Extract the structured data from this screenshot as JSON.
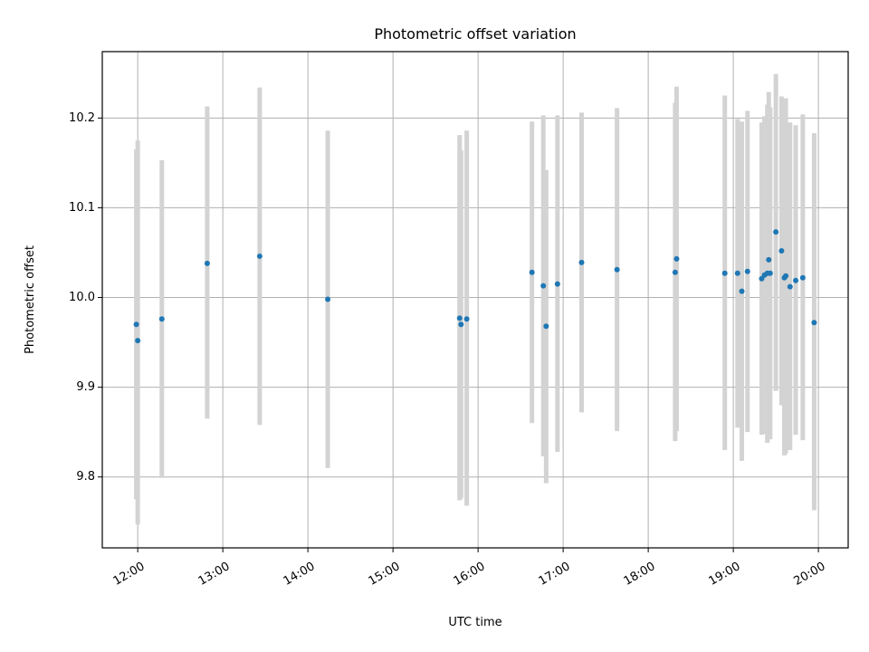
{
  "chart_data": {
    "type": "scatter",
    "title": "Photometric offset variation",
    "xlabel": "UTC time",
    "ylabel": "Photometric offset",
    "xlim": [
      "11:35",
      "20:21"
    ],
    "ylim": [
      9.721,
      10.274
    ],
    "x_ticks": [
      "12:00",
      "13:00",
      "14:00",
      "15:00",
      "16:00",
      "17:00",
      "18:00",
      "19:00",
      "20:00"
    ],
    "y_ticks": [
      "9.8",
      "9.9",
      "10.0",
      "10.1",
      "10.2"
    ],
    "grid": true,
    "marker_color": "#1f77b4",
    "errorbar_color": "#d3d3d3",
    "points": [
      {
        "x": "11:59",
        "y": 9.97,
        "ylow": 9.775,
        "yhigh": 10.165
      },
      {
        "x": "12:00",
        "y": 9.952,
        "ylow": 9.747,
        "yhigh": 10.175
      },
      {
        "x": "12:17",
        "y": 9.976,
        "ylow": 9.799,
        "yhigh": 10.153
      },
      {
        "x": "12:49",
        "y": 10.038,
        "ylow": 9.865,
        "yhigh": 10.213
      },
      {
        "x": "13:26",
        "y": 10.046,
        "ylow": 9.858,
        "yhigh": 10.234
      },
      {
        "x": "14:14",
        "y": 9.998,
        "ylow": 9.81,
        "yhigh": 10.186
      },
      {
        "x": "15:47",
        "y": 9.977,
        "ylow": 9.774,
        "yhigh": 10.181
      },
      {
        "x": "15:48",
        "y": 9.97,
        "ylow": 9.776,
        "yhigh": 10.164
      },
      {
        "x": "15:52",
        "y": 9.976,
        "ylow": 9.768,
        "yhigh": 10.186
      },
      {
        "x": "16:38",
        "y": 10.028,
        "ylow": 9.86,
        "yhigh": 10.196
      },
      {
        "x": "16:46",
        "y": 10.013,
        "ylow": 9.823,
        "yhigh": 10.203
      },
      {
        "x": "16:48",
        "y": 9.968,
        "ylow": 9.793,
        "yhigh": 10.142
      },
      {
        "x": "16:56",
        "y": 10.015,
        "ylow": 9.828,
        "yhigh": 10.203
      },
      {
        "x": "17:13",
        "y": 10.039,
        "ylow": 9.872,
        "yhigh": 10.206
      },
      {
        "x": "17:38",
        "y": 10.031,
        "ylow": 9.851,
        "yhigh": 10.211
      },
      {
        "x": "18:19",
        "y": 10.028,
        "ylow": 9.84,
        "yhigh": 10.217
      },
      {
        "x": "18:20",
        "y": 10.043,
        "ylow": 9.851,
        "yhigh": 10.235
      },
      {
        "x": "18:54",
        "y": 10.027,
        "ylow": 9.83,
        "yhigh": 10.225
      },
      {
        "x": "19:03",
        "y": 10.027,
        "ylow": 9.855,
        "yhigh": 10.199
      },
      {
        "x": "19:06",
        "y": 10.007,
        "ylow": 9.818,
        "yhigh": 10.196
      },
      {
        "x": "19:10",
        "y": 10.029,
        "ylow": 9.85,
        "yhigh": 10.208
      },
      {
        "x": "19:20",
        "y": 10.021,
        "ylow": 9.847,
        "yhigh": 10.195
      },
      {
        "x": "19:22",
        "y": 10.025,
        "ylow": 9.848,
        "yhigh": 10.202
      },
      {
        "x": "19:24",
        "y": 10.027,
        "ylow": 9.838,
        "yhigh": 10.215
      },
      {
        "x": "19:25",
        "y": 10.042,
        "ylow": 9.855,
        "yhigh": 10.229
      },
      {
        "x": "19:26",
        "y": 10.027,
        "ylow": 9.842,
        "yhigh": 10.212
      },
      {
        "x": "19:30",
        "y": 10.073,
        "ylow": 9.896,
        "yhigh": 10.249
      },
      {
        "x": "19:34",
        "y": 10.052,
        "ylow": 9.88,
        "yhigh": 10.224
      },
      {
        "x": "19:36",
        "y": 10.022,
        "ylow": 9.824,
        "yhigh": 10.22
      },
      {
        "x": "19:37",
        "y": 10.024,
        "ylow": 9.826,
        "yhigh": 10.222
      },
      {
        "x": "19:40",
        "y": 10.012,
        "ylow": 9.83,
        "yhigh": 10.195
      },
      {
        "x": "19:44",
        "y": 10.019,
        "ylow": 9.847,
        "yhigh": 10.192
      },
      {
        "x": "19:49",
        "y": 10.022,
        "ylow": 9.841,
        "yhigh": 10.204
      },
      {
        "x": "19:57",
        "y": 9.972,
        "ylow": 9.763,
        "yhigh": 10.183
      }
    ]
  }
}
